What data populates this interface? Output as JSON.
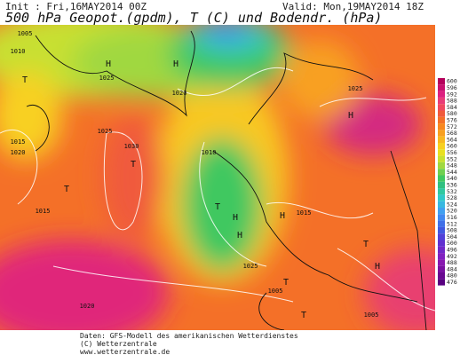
{
  "header": {
    "init": "Init : Fri,16MAY2014 00Z",
    "valid": "Valid: Mon,19MAY2014 18Z",
    "title": "500 hPa Geopot.(gpdm), T (C) und Bodendr. (hPa)"
  },
  "legend": {
    "levels": [
      600,
      596,
      592,
      588,
      584,
      580,
      576,
      572,
      568,
      564,
      560,
      556,
      552,
      548,
      544,
      540,
      536,
      532,
      528,
      524,
      520,
      516,
      512,
      508,
      504,
      500,
      496,
      492,
      488,
      484,
      480,
      476
    ],
    "colors": [
      "#b4005a",
      "#c8106e",
      "#dc2080",
      "#e83c78",
      "#f04860",
      "#f05a3c",
      "#f47028",
      "#f88820",
      "#f8a020",
      "#f8b820",
      "#f8d020",
      "#e8e020",
      "#c8e030",
      "#a0d840",
      "#70d050",
      "#40c860",
      "#30c080",
      "#30c8a0",
      "#30c8c8",
      "#38b8e0",
      "#40a0f0",
      "#4088f0",
      "#4070e8",
      "#4058e0",
      "#5040d8",
      "#6030d0",
      "#7028c8",
      "#8020c0",
      "#8818b0",
      "#7810a0",
      "#680890",
      "#580080"
    ]
  },
  "map_labels": [
    "1005",
    "1010",
    "T",
    "H",
    "1025",
    "H",
    "1020",
    "1025",
    "1015",
    "1020",
    "T",
    "1015",
    "1030",
    "T",
    "1010",
    "T",
    "H",
    "H",
    "1015",
    "H",
    "1025",
    "T",
    "H",
    "1005",
    "1005",
    "T",
    "1020",
    "H",
    "1025",
    "T"
  ],
  "footer": [
    "Daten: GFS-Modell des amerikanischen Wetterdienstes",
    "(C) Wetterzentrale",
    "www.wetterzentrale.de"
  ]
}
